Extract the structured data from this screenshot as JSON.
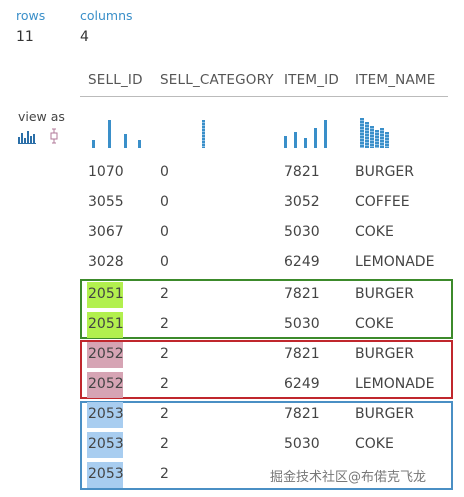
{
  "summary": {
    "rows_label": "rows",
    "rows_value": "11",
    "columns_label": "columns",
    "columns_value": "4"
  },
  "view_as_label": "view as",
  "columns": [
    "SELL_ID",
    "SELL_CATEGORY",
    "ITEM_ID",
    "ITEM_NAME"
  ],
  "rows": [
    {
      "sell_id": "1070",
      "sell_category": "0",
      "item_id": "7821",
      "item_name": "BURGER",
      "highlight": "none"
    },
    {
      "sell_id": "3055",
      "sell_category": "0",
      "item_id": "3052",
      "item_name": "COFFEE",
      "highlight": "none"
    },
    {
      "sell_id": "3067",
      "sell_category": "0",
      "item_id": "5030",
      "item_name": "COKE",
      "highlight": "none"
    },
    {
      "sell_id": "3028",
      "sell_category": "0",
      "item_id": "6249",
      "item_name": "LEMONADE",
      "highlight": "none"
    },
    {
      "sell_id": "2051",
      "sell_category": "2",
      "item_id": "7821",
      "item_name": "BURGER",
      "highlight": "green"
    },
    {
      "sell_id": "2051",
      "sell_category": "2",
      "item_id": "5030",
      "item_name": "COKE",
      "highlight": "green"
    },
    {
      "sell_id": "2052",
      "sell_category": "2",
      "item_id": "7821",
      "item_name": "BURGER",
      "highlight": "pink"
    },
    {
      "sell_id": "2052",
      "sell_category": "2",
      "item_id": "6249",
      "item_name": "LEMONADE",
      "highlight": "pink"
    },
    {
      "sell_id": "2053",
      "sell_category": "2",
      "item_id": "7821",
      "item_name": "BURGER",
      "highlight": "blue"
    },
    {
      "sell_id": "2053",
      "sell_category": "2",
      "item_id": "5030",
      "item_name": "COKE",
      "highlight": "blue"
    },
    {
      "sell_id": "2053",
      "sell_category": "2",
      "item_id": "",
      "item_name": "",
      "highlight": "blue"
    }
  ],
  "group_box_colors": {
    "green": "#3c8a2b",
    "red": "#c0272d",
    "blue": "#4a8fc4"
  },
  "highlight_colors": {
    "green": "#b2f04e",
    "pink": "#d6a4b4",
    "blue": "#a8cdf0"
  },
  "accent_color": "#3a8fc9",
  "icons": [
    "histogram-view-icon",
    "boxplot-view-icon"
  ],
  "watermark_text": "掘金技术社区@布偌克飞龙"
}
